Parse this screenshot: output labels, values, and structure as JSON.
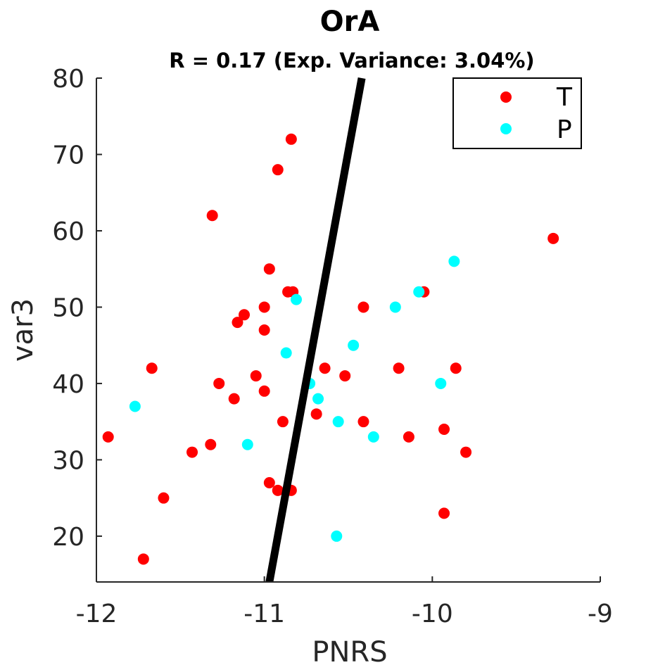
{
  "chart_data": {
    "type": "scatter",
    "title": "OrA",
    "subtitle": "R = 0.17 (Exp. Variance: 3.04%)",
    "xlabel": "PNRS",
    "ylabel": "var3",
    "xlim": [
      -12,
      -9
    ],
    "ylim": [
      14,
      80
    ],
    "xticks": [
      -12,
      -11,
      -10,
      -9
    ],
    "xtick_labels": [
      "-12",
      "-11",
      "-10",
      "-9"
    ],
    "yticks": [
      20,
      30,
      40,
      50,
      60,
      70,
      80
    ],
    "ytick_labels": [
      "20",
      "30",
      "40",
      "50",
      "60",
      "70",
      "80"
    ],
    "grid": false,
    "legend_position": "top-right",
    "series": [
      {
        "name": "T",
        "color": "#ff0000",
        "points": [
          [
            -11.93,
            33
          ],
          [
            -11.72,
            17
          ],
          [
            -11.67,
            42
          ],
          [
            -11.6,
            25
          ],
          [
            -11.43,
            31
          ],
          [
            -11.32,
            32
          ],
          [
            -11.31,
            62
          ],
          [
            -11.27,
            40
          ],
          [
            -11.18,
            38
          ],
          [
            -11.16,
            48
          ],
          [
            -11.12,
            49
          ],
          [
            -11.05,
            41
          ],
          [
            -11.0,
            50
          ],
          [
            -11.0,
            47
          ],
          [
            -11.0,
            39
          ],
          [
            -10.97,
            55
          ],
          [
            -10.97,
            27
          ],
          [
            -10.92,
            68
          ],
          [
            -10.92,
            26
          ],
          [
            -10.89,
            35
          ],
          [
            -10.86,
            52
          ],
          [
            -10.84,
            72
          ],
          [
            -10.84,
            26
          ],
          [
            -10.83,
            52
          ],
          [
            -10.69,
            36
          ],
          [
            -10.64,
            42
          ],
          [
            -10.52,
            41
          ],
          [
            -10.41,
            50
          ],
          [
            -10.41,
            35
          ],
          [
            -10.2,
            42
          ],
          [
            -10.14,
            33
          ],
          [
            -10.05,
            52
          ],
          [
            -9.93,
            34
          ],
          [
            -9.93,
            23
          ],
          [
            -9.86,
            42
          ],
          [
            -9.8,
            31
          ],
          [
            -9.28,
            59
          ]
        ]
      },
      {
        "name": "P",
        "color": "#00ffff",
        "points": [
          [
            -11.77,
            37
          ],
          [
            -11.1,
            32
          ],
          [
            -10.87,
            44
          ],
          [
            -10.81,
            51
          ],
          [
            -10.73,
            40
          ],
          [
            -10.68,
            38
          ],
          [
            -10.57,
            20
          ],
          [
            -10.56,
            35
          ],
          [
            -10.47,
            45
          ],
          [
            -10.35,
            33
          ],
          [
            -10.22,
            50
          ],
          [
            -10.08,
            52
          ],
          [
            -9.95,
            40
          ],
          [
            -9.87,
            56
          ]
        ]
      }
    ],
    "fit_line": {
      "color": "#000000",
      "points": [
        [
          -10.97,
          14
        ],
        [
          -10.42,
          80
        ]
      ]
    }
  }
}
